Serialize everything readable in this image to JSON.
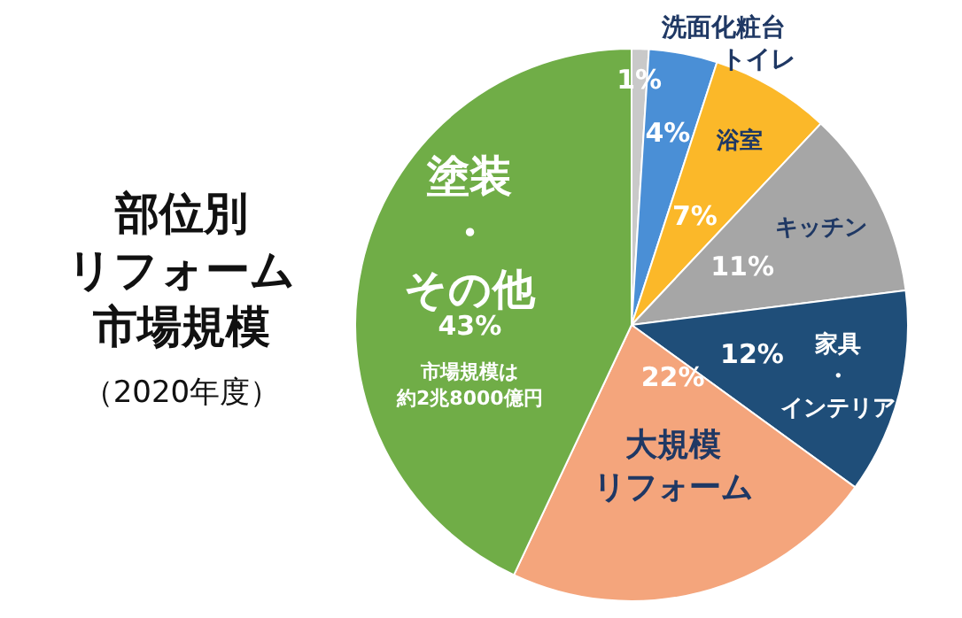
{
  "chart_data": {
    "type": "pie",
    "title": "部位別リフォーム市場規模",
    "subtitle": "（2020年度）",
    "categories": [
      "洗面化粧台",
      "トイレ",
      "浴室",
      "キッチン",
      "家具・インテリア",
      "大規模リフォーム",
      "塗装・その他"
    ],
    "values": [
      1,
      4,
      7,
      11,
      12,
      22,
      43
    ],
    "value_labels": [
      "1%",
      "4%",
      "7%",
      "11%",
      "12%",
      "22%",
      "43%"
    ],
    "colors": [
      "#c9c9c9",
      "#4a8fd6",
      "#fbb829",
      "#a6a6a6",
      "#1f4e79",
      "#f4a57c",
      "#70ad47"
    ],
    "annotations": [
      {
        "text": "市場規模は約2兆8000億円",
        "x": "塗装・その他"
      }
    ],
    "legend": false
  }
}
